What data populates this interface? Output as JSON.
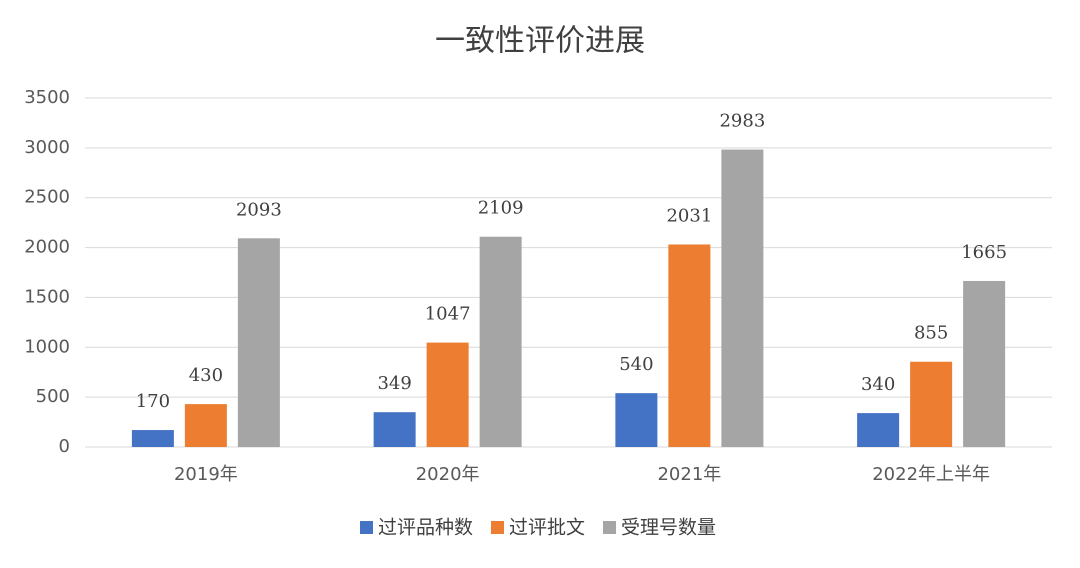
{
  "chart_data": {
    "type": "bar",
    "title": "一致性评价进展",
    "categories": [
      "2019年",
      "2020年",
      "2021年",
      "2022年上半年"
    ],
    "series": [
      {
        "name": "过评品种数",
        "color": "#4472c4",
        "values": [
          170,
          349,
          540,
          340
        ]
      },
      {
        "name": "过评批文",
        "color": "#ed7d31",
        "values": [
          430,
          1047,
          2031,
          855
        ]
      },
      {
        "name": "受理号数量",
        "color": "#a5a5a5",
        "values": [
          2093,
          2109,
          2983,
          1665
        ]
      }
    ],
    "ylim": [
      0,
      3500
    ],
    "yticks": [
      0,
      500,
      1000,
      1500,
      2000,
      2500,
      3000,
      3500
    ],
    "grid": true,
    "legend": "bottom"
  }
}
